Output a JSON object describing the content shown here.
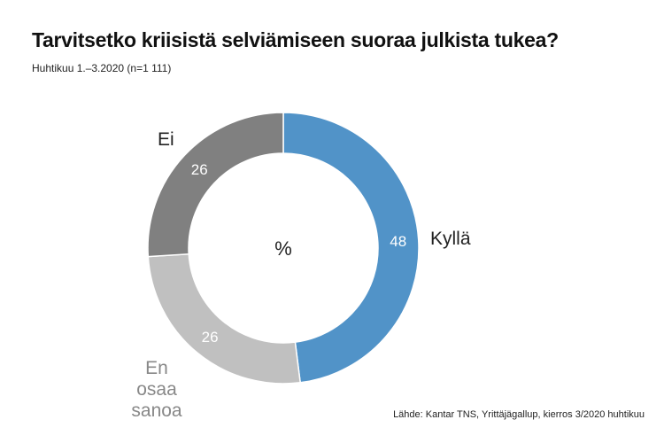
{
  "title": "Tarvitsetko kriisistä selviämiseen suoraa julkista tukea?",
  "subtitle": "Huhtikuu 1.–3.2020 (n=1 111)",
  "source": "Lähde: Kantar TNS, Yrittäjägallup, kierros 3/2020 huhtikuu",
  "chart_data": {
    "type": "pie",
    "donut": true,
    "center_label": "%",
    "categories": [
      "Kyllä",
      "En osaa sanoa",
      "Ei"
    ],
    "values": [
      48,
      26,
      26
    ],
    "colors": [
      "#5193c8",
      "#c0c0c0",
      "#808080"
    ],
    "label_lines": [
      [
        "Kyllä"
      ],
      [
        "En osaa",
        "sanoa"
      ],
      [
        "Ei"
      ]
    ]
  }
}
